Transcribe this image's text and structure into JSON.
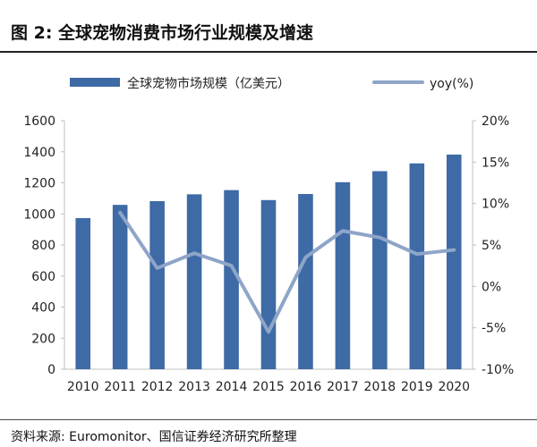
{
  "header": {
    "title": "图 2:  全球宠物消费市场行业规模及增速"
  },
  "footer": {
    "source": "资料来源:  Euromonitor、国信证券经济研究所整理"
  },
  "colors": {
    "bar": "#3E6AA6",
    "line": "#8EA5C8",
    "axis": "#BFBFBF",
    "text": "#222222"
  },
  "chart_data": {
    "type": "bar",
    "categories": [
      "2010",
      "2011",
      "2012",
      "2013",
      "2014",
      "2015",
      "2016",
      "2017",
      "2018",
      "2019",
      "2020"
    ],
    "series": [
      {
        "name": "全球宠物市场规模（亿美元）",
        "type": "bar",
        "axis": "left",
        "values": [
          973,
          1058,
          1082,
          1126,
          1153,
          1089,
          1128,
          1204,
          1275,
          1325,
          1382
        ]
      },
      {
        "name": "yoy(%)",
        "type": "line",
        "axis": "right",
        "values": [
          null,
          8.9,
          2.2,
          4.0,
          2.5,
          -5.5,
          3.5,
          6.7,
          5.9,
          3.9,
          4.4
        ]
      }
    ],
    "y_left": {
      "ylim": [
        0,
        1600
      ],
      "ticks": [
        "0",
        "200",
        "400",
        "600",
        "800",
        "1000",
        "1200",
        "1400",
        "1600"
      ]
    },
    "y_right": {
      "ylim": [
        -10,
        20
      ],
      "ticks": [
        "-10%",
        "-5%",
        "0%",
        "5%",
        "10%",
        "15%",
        "20%"
      ]
    },
    "legend": {
      "position": "top",
      "items": [
        {
          "label": "全球宠物市场规模（亿美元）",
          "kind": "bar"
        },
        {
          "label": "yoy(%)",
          "kind": "line"
        }
      ]
    },
    "grid": false
  }
}
